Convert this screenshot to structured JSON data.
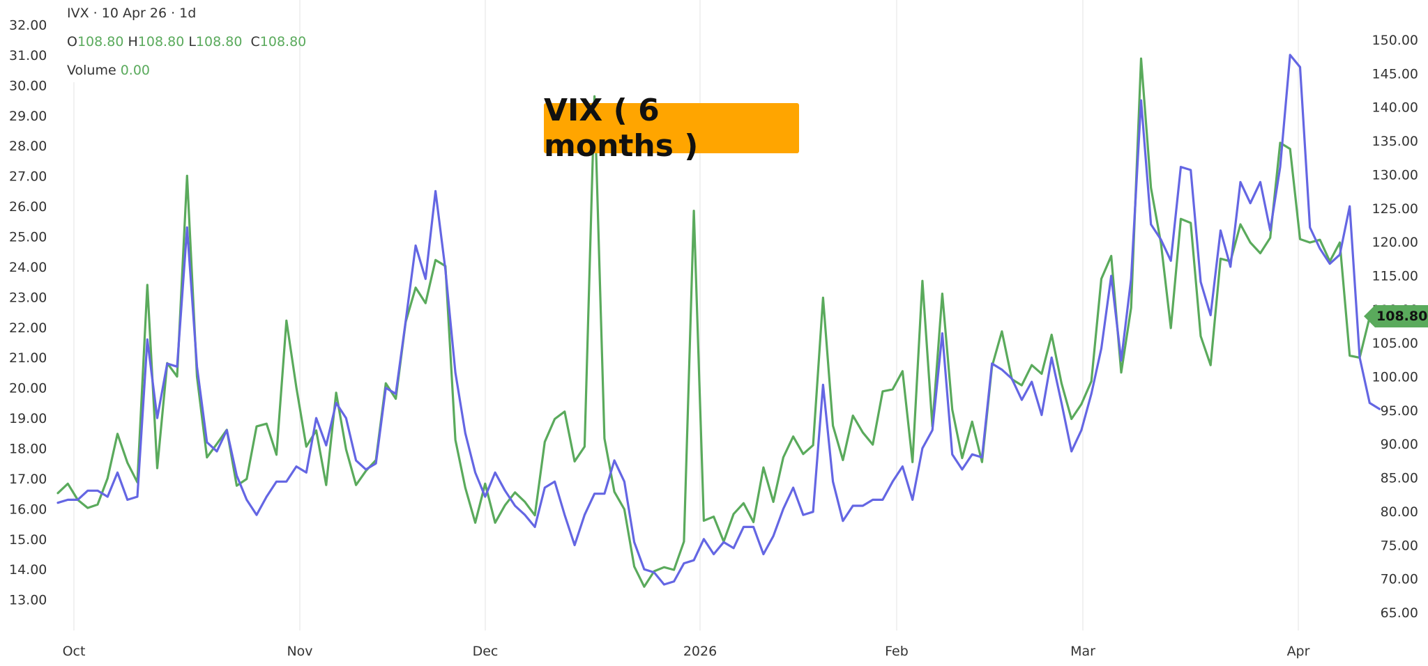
{
  "legend": {
    "header": "IVX · 10 Apr 26 · 1d",
    "o_label": "O",
    "o_value": "108.80",
    "h_label": "H",
    "h_value": "108.80",
    "l_label": "L",
    "l_value": "108.80",
    "c_label": "C",
    "c_value": "108.80",
    "volume_label": "Volume",
    "volume_value": "0.00"
  },
  "annotation": {
    "title": "VIX ( 6 months )",
    "color": "#ffa500"
  },
  "price_tag": {
    "value": "108.80",
    "color": "#5aaa5c"
  },
  "chart_data": {
    "type": "line",
    "title": "VIX ( 6 months )",
    "x_tick_labels": [
      "Oct",
      "Nov",
      "Dec",
      "2026",
      "Feb",
      "Mar",
      "Apr"
    ],
    "left_axis": {
      "ticks": [
        "32.00",
        "31.00",
        "30.00",
        "29.00",
        "28.00",
        "27.00",
        "26.00",
        "25.00",
        "24.00",
        "23.00",
        "22.00",
        "21.00",
        "20.00",
        "19.00",
        "18.00",
        "17.00",
        "16.00",
        "15.00",
        "14.00",
        "13.00"
      ],
      "ylim": [
        11.8,
        32.4
      ]
    },
    "right_axis": {
      "ticks": [
        "150.00",
        "145.00",
        "140.00",
        "135.00",
        "130.00",
        "125.00",
        "120.00",
        "115.00",
        "110.00",
        "105.00",
        "100.00",
        "95.00",
        "90.00",
        "85.00",
        "80.00",
        "75.00",
        "70.00",
        "65.00"
      ],
      "ylim": [
        61.1,
        153.6
      ]
    },
    "grid": "vertical",
    "series": [
      {
        "axis": "right",
        "color": "#5aaa5c",
        "values": [
          82.7,
          84.1,
          81.7,
          80.5,
          81.0,
          84.9,
          91.5,
          87.2,
          84.3,
          113.6,
          86.4,
          102.0,
          100.0,
          129.8,
          100.0,
          88.0,
          90.0,
          92.1,
          83.8,
          84.8,
          92.6,
          93.0,
          88.4,
          108.3,
          98.4,
          89.6,
          92.0,
          83.9,
          97.6,
          89.2,
          83.9,
          86.0,
          87.6,
          99.0,
          96.7,
          108.1,
          113.2,
          110.9,
          117.3,
          116.4,
          90.6,
          83.5,
          78.3,
          84.1,
          78.3,
          80.9,
          82.8,
          81.4,
          79.4,
          90.3,
          93.7,
          94.8,
          87.4,
          89.6,
          141.6,
          90.8,
          82.9,
          80.3,
          71.8,
          68.8,
          71.1,
          71.7,
          71.3,
          75.5,
          124.6,
          78.6,
          79.2,
          75.5,
          79.6,
          81.2,
          78.4,
          86.5,
          81.4,
          88.0,
          91.1,
          88.5,
          89.8,
          111.7,
          92.7,
          87.6,
          94.2,
          91.7,
          89.9,
          97.8,
          98.1,
          100.8,
          87.3,
          114.2,
          92.6,
          112.3,
          95.1,
          87.9,
          93.3,
          87.3,
          101.5,
          106.7,
          99.6,
          98.7,
          101.7,
          100.4,
          106.2,
          99.0,
          93.7,
          95.9,
          99.3,
          114.5,
          117.9,
          100.6,
          110.2,
          147.2,
          128.0,
          119.8,
          107.2,
          123.4,
          122.8,
          106.0,
          101.7,
          117.5,
          117.1,
          122.6,
          119.9,
          118.3,
          120.6,
          134.7,
          133.8,
          120.4,
          119.9,
          120.3,
          117.1,
          119.9,
          103.1,
          102.8,
          108.8
        ]
      },
      {
        "axis": "left",
        "color": "#6466e3",
        "values": [
          16.2,
          16.3,
          16.3,
          16.6,
          16.6,
          16.4,
          17.2,
          16.3,
          16.4,
          21.6,
          19.0,
          20.8,
          20.7,
          25.3,
          20.7,
          18.2,
          17.9,
          18.6,
          17.1,
          16.3,
          15.8,
          16.4,
          16.9,
          16.9,
          17.4,
          17.2,
          19.0,
          18.1,
          19.5,
          19.0,
          17.6,
          17.3,
          17.5,
          20.0,
          19.8,
          22.2,
          24.7,
          23.6,
          26.5,
          23.9,
          20.5,
          18.5,
          17.2,
          16.4,
          17.2,
          16.6,
          16.1,
          15.8,
          15.4,
          16.7,
          16.9,
          15.8,
          14.8,
          15.8,
          16.5,
          16.5,
          17.6,
          16.9,
          14.9,
          14.0,
          13.9,
          13.5,
          13.6,
          14.2,
          14.3,
          15.0,
          14.5,
          14.9,
          14.7,
          15.4,
          15.4,
          14.5,
          15.1,
          16.0,
          16.7,
          15.8,
          15.9,
          20.1,
          16.9,
          15.6,
          16.1,
          16.1,
          16.3,
          16.3,
          16.9,
          17.4,
          16.3,
          18.0,
          18.6,
          21.8,
          17.8,
          17.3,
          17.8,
          17.7,
          20.8,
          20.6,
          20.3,
          19.6,
          20.2,
          19.1,
          21.0,
          19.5,
          17.9,
          18.6,
          19.8,
          21.3,
          23.7,
          20.9,
          23.6,
          29.5,
          25.4,
          24.9,
          24.2,
          27.3,
          27.2,
          23.5,
          22.4,
          25.2,
          24.0,
          26.8,
          26.1,
          26.8,
          25.2,
          27.3,
          31.0,
          30.6,
          25.3,
          24.6,
          24.1,
          24.4,
          26.0,
          21.0,
          19.5,
          19.3
        ]
      }
    ]
  }
}
